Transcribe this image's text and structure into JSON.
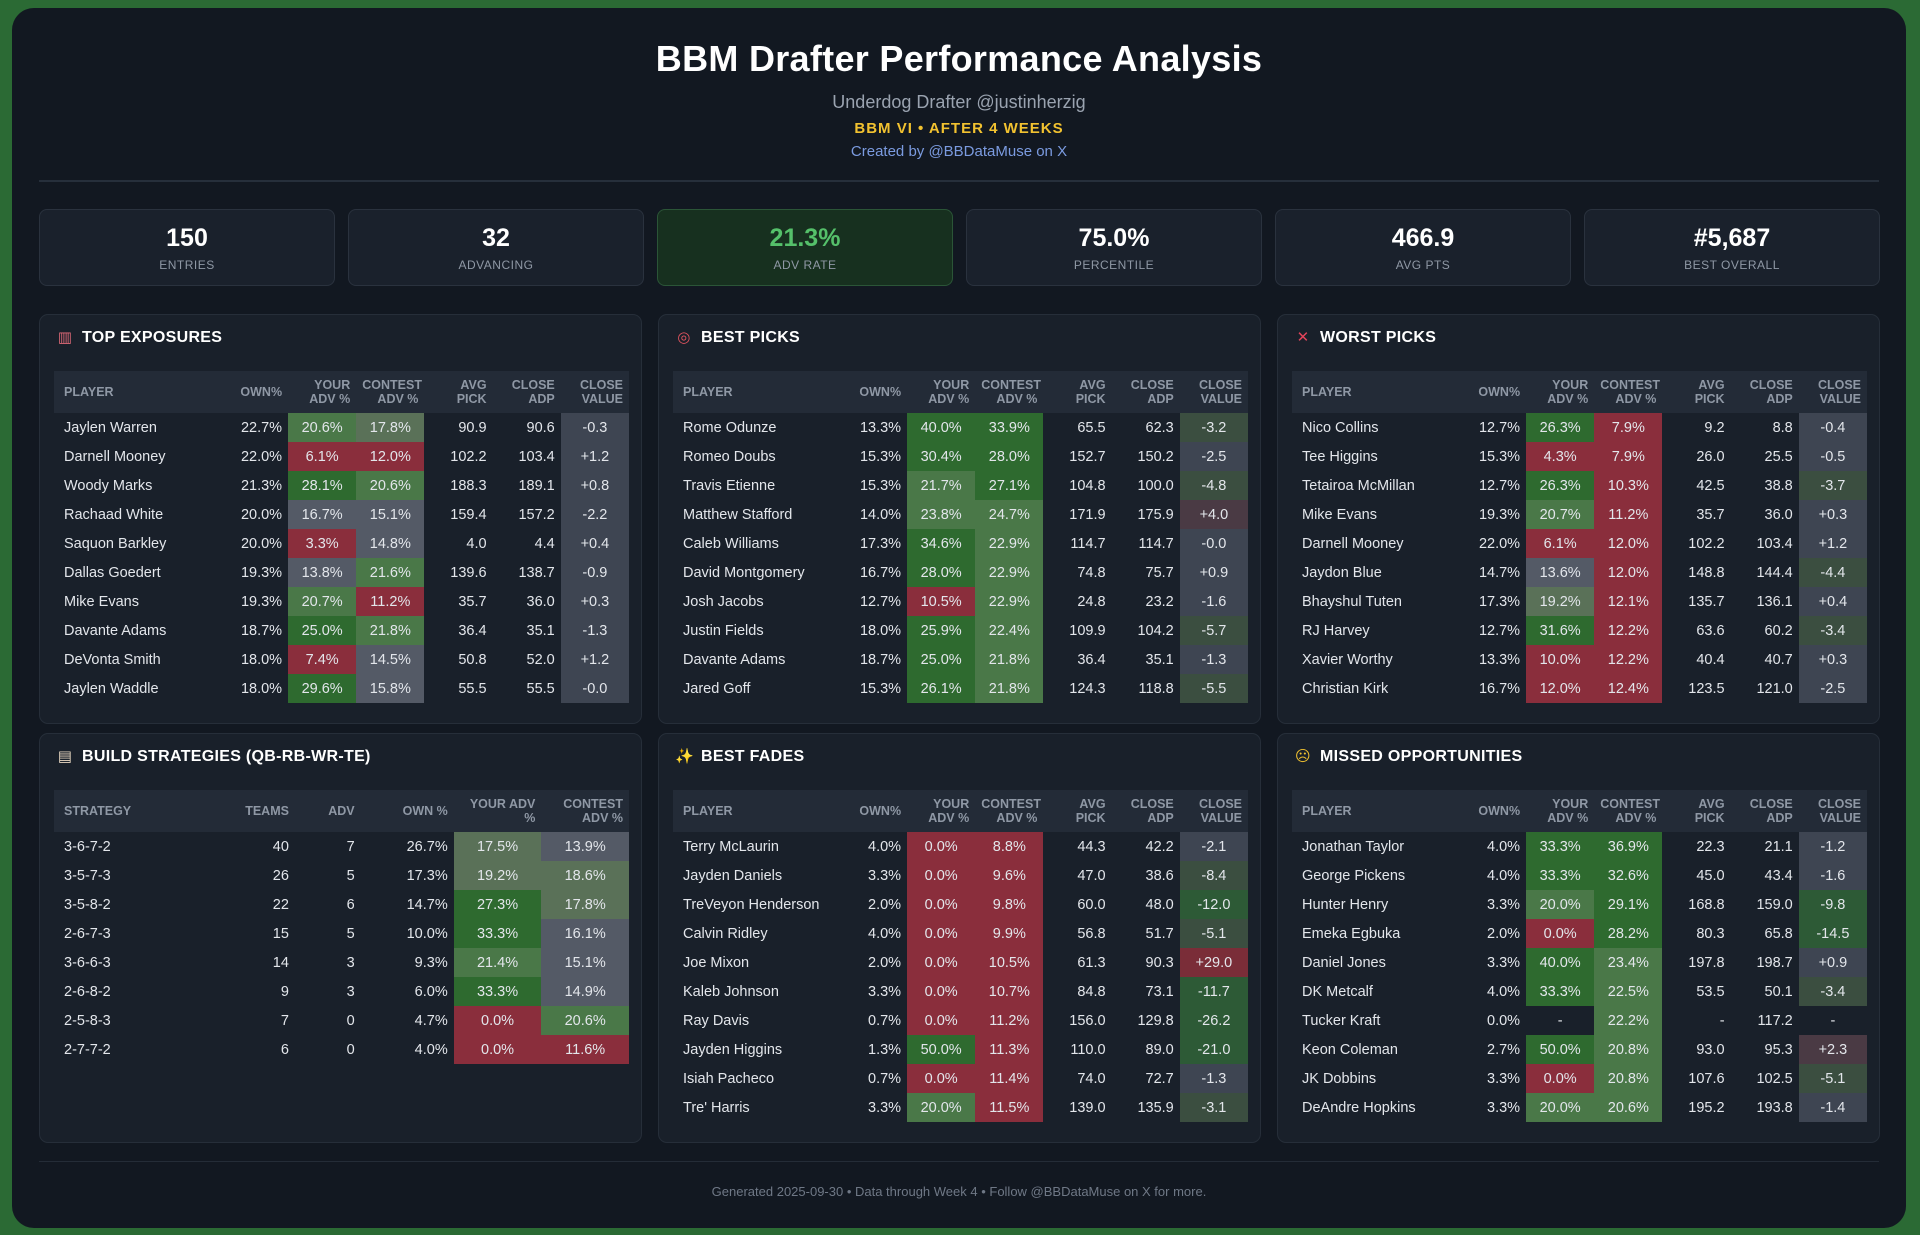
{
  "header": {
    "title": "BBM Drafter Performance Analysis",
    "subtitle": "Underdog Drafter @justinherzig",
    "season": "BBM VI • AFTER 4 WEEKS",
    "credit": "Created by @BBDataMuse on X"
  },
  "stats": [
    {
      "value": "150",
      "label": "ENTRIES"
    },
    {
      "value": "32",
      "label": "ADVANCING"
    },
    {
      "value": "21.3%",
      "label": "ADV RATE"
    },
    {
      "value": "75.0%",
      "label": "PERCENTILE"
    },
    {
      "value": "466.9",
      "label": "AVG PTS"
    },
    {
      "value": "#5,687",
      "label": "BEST OVERALL"
    }
  ],
  "colors": {
    "adv_high": "#2e6a2f",
    "adv_mid": "#4a7848",
    "adv_mid_low": "#5a7158",
    "adv_neutral": "#545a66",
    "adv_low": "#8a2e3c",
    "value_neg_strong": "#2d5a36",
    "value_neg": "#3b4e40",
    "value_flat": "#3e4552",
    "value_pos": "#4a3a44",
    "value_pos_strong": "#7a2d38"
  },
  "player_headers": [
    "PLAYER",
    "OWN%",
    "YOUR ADV %",
    "CONTEST ADV %",
    "AVG PICK",
    "CLOSE ADP",
    "CLOSE VALUE"
  ],
  "panels": {
    "top_exposures": {
      "title": "TOP EXPOSURES",
      "icon": "bar-chart-icon",
      "rows": [
        [
          "Jaylen Warren",
          "22.7%",
          "20.6%",
          "17.8%",
          "90.9",
          "90.6",
          "-0.3"
        ],
        [
          "Darnell Mooney",
          "22.0%",
          "6.1%",
          "12.0%",
          "102.2",
          "103.4",
          "+1.2"
        ],
        [
          "Woody Marks",
          "21.3%",
          "28.1%",
          "20.6%",
          "188.3",
          "189.1",
          "+0.8"
        ],
        [
          "Rachaad White",
          "20.0%",
          "16.7%",
          "15.1%",
          "159.4",
          "157.2",
          "-2.2"
        ],
        [
          "Saquon Barkley",
          "20.0%",
          "3.3%",
          "14.8%",
          "4.0",
          "4.4",
          "+0.4"
        ],
        [
          "Dallas Goedert",
          "19.3%",
          "13.8%",
          "21.6%",
          "139.6",
          "138.7",
          "-0.9"
        ],
        [
          "Mike Evans",
          "19.3%",
          "20.7%",
          "11.2%",
          "35.7",
          "36.0",
          "+0.3"
        ],
        [
          "Davante Adams",
          "18.7%",
          "25.0%",
          "21.8%",
          "36.4",
          "35.1",
          "-1.3"
        ],
        [
          "DeVonta Smith",
          "18.0%",
          "7.4%",
          "14.5%",
          "50.8",
          "52.0",
          "+1.2"
        ],
        [
          "Jaylen Waddle",
          "18.0%",
          "29.6%",
          "15.8%",
          "55.5",
          "55.5",
          "-0.0"
        ]
      ]
    },
    "best_picks": {
      "title": "BEST PICKS",
      "icon": "target-icon",
      "rows": [
        [
          "Rome Odunze",
          "13.3%",
          "40.0%",
          "33.9%",
          "65.5",
          "62.3",
          "-3.2"
        ],
        [
          "Romeo Doubs",
          "15.3%",
          "30.4%",
          "28.0%",
          "152.7",
          "150.2",
          "-2.5"
        ],
        [
          "Travis Etienne",
          "15.3%",
          "21.7%",
          "27.1%",
          "104.8",
          "100.0",
          "-4.8"
        ],
        [
          "Matthew Stafford",
          "14.0%",
          "23.8%",
          "24.7%",
          "171.9",
          "175.9",
          "+4.0"
        ],
        [
          "Caleb Williams",
          "17.3%",
          "34.6%",
          "22.9%",
          "114.7",
          "114.7",
          "-0.0"
        ],
        [
          "David Montgomery",
          "16.7%",
          "28.0%",
          "22.9%",
          "74.8",
          "75.7",
          "+0.9"
        ],
        [
          "Josh Jacobs",
          "12.7%",
          "10.5%",
          "22.9%",
          "24.8",
          "23.2",
          "-1.6"
        ],
        [
          "Justin Fields",
          "18.0%",
          "25.9%",
          "22.4%",
          "109.9",
          "104.2",
          "-5.7"
        ],
        [
          "Davante Adams",
          "18.7%",
          "25.0%",
          "21.8%",
          "36.4",
          "35.1",
          "-1.3"
        ],
        [
          "Jared Goff",
          "15.3%",
          "26.1%",
          "21.8%",
          "124.3",
          "118.8",
          "-5.5"
        ]
      ]
    },
    "worst_picks": {
      "title": "WORST PICKS",
      "icon": "x-mark-icon",
      "rows": [
        [
          "Nico Collins",
          "12.7%",
          "26.3%",
          "7.9%",
          "9.2",
          "8.8",
          "-0.4"
        ],
        [
          "Tee Higgins",
          "15.3%",
          "4.3%",
          "7.9%",
          "26.0",
          "25.5",
          "-0.5"
        ],
        [
          "Tetairoa McMillan",
          "12.7%",
          "26.3%",
          "10.3%",
          "42.5",
          "38.8",
          "-3.7"
        ],
        [
          "Mike Evans",
          "19.3%",
          "20.7%",
          "11.2%",
          "35.7",
          "36.0",
          "+0.3"
        ],
        [
          "Darnell Mooney",
          "22.0%",
          "6.1%",
          "12.0%",
          "102.2",
          "103.4",
          "+1.2"
        ],
        [
          "Jaydon Blue",
          "14.7%",
          "13.6%",
          "12.0%",
          "148.8",
          "144.4",
          "-4.4"
        ],
        [
          "Bhayshul Tuten",
          "17.3%",
          "19.2%",
          "12.1%",
          "135.7",
          "136.1",
          "+0.4"
        ],
        [
          "RJ Harvey",
          "12.7%",
          "31.6%",
          "12.2%",
          "63.6",
          "60.2",
          "-3.4"
        ],
        [
          "Xavier Worthy",
          "13.3%",
          "10.0%",
          "12.2%",
          "40.4",
          "40.7",
          "+0.3"
        ],
        [
          "Christian Kirk",
          "16.7%",
          "12.0%",
          "12.4%",
          "123.5",
          "121.0",
          "-2.5"
        ]
      ]
    },
    "build_strategies": {
      "title": "BUILD STRATEGIES (QB-RB-WR-TE)",
      "icon": "clipboard-icon",
      "headers": [
        "STRATEGY",
        "TEAMS",
        "ADV",
        "OWN %",
        "YOUR ADV %",
        "CONTEST ADV %"
      ],
      "rows": [
        [
          "3-6-7-2",
          "40",
          "7",
          "26.7%",
          "17.5%",
          "13.9%"
        ],
        [
          "3-5-7-3",
          "26",
          "5",
          "17.3%",
          "19.2%",
          "18.6%"
        ],
        [
          "3-5-8-2",
          "22",
          "6",
          "14.7%",
          "27.3%",
          "17.8%"
        ],
        [
          "2-6-7-3",
          "15",
          "5",
          "10.0%",
          "33.3%",
          "16.1%"
        ],
        [
          "3-6-6-3",
          "14",
          "3",
          "9.3%",
          "21.4%",
          "15.1%"
        ],
        [
          "2-6-8-2",
          "9",
          "3",
          "6.0%",
          "33.3%",
          "14.9%"
        ],
        [
          "2-5-8-3",
          "7",
          "0",
          "4.7%",
          "0.0%",
          "20.6%"
        ],
        [
          "2-7-7-2",
          "6",
          "0",
          "4.0%",
          "0.0%",
          "11.6%"
        ]
      ]
    },
    "best_fades": {
      "title": "BEST FADES",
      "icon": "sparkles-icon",
      "rows": [
        [
          "Terry McLaurin",
          "4.0%",
          "0.0%",
          "8.8%",
          "44.3",
          "42.2",
          "-2.1"
        ],
        [
          "Jayden Daniels",
          "3.3%",
          "0.0%",
          "9.6%",
          "47.0",
          "38.6",
          "-8.4"
        ],
        [
          "TreVeyon Henderson",
          "2.0%",
          "0.0%",
          "9.8%",
          "60.0",
          "48.0",
          "-12.0"
        ],
        [
          "Calvin Ridley",
          "4.0%",
          "0.0%",
          "9.9%",
          "56.8",
          "51.7",
          "-5.1"
        ],
        [
          "Joe Mixon",
          "2.0%",
          "0.0%",
          "10.5%",
          "61.3",
          "90.3",
          "+29.0"
        ],
        [
          "Kaleb Johnson",
          "3.3%",
          "0.0%",
          "10.7%",
          "84.8",
          "73.1",
          "-11.7"
        ],
        [
          "Ray Davis",
          "0.7%",
          "0.0%",
          "11.2%",
          "156.0",
          "129.8",
          "-26.2"
        ],
        [
          "Jayden Higgins",
          "1.3%",
          "50.0%",
          "11.3%",
          "110.0",
          "89.0",
          "-21.0"
        ],
        [
          "Isiah Pacheco",
          "0.7%",
          "0.0%",
          "11.4%",
          "74.0",
          "72.7",
          "-1.3"
        ],
        [
          "Tre' Harris",
          "3.3%",
          "20.0%",
          "11.5%",
          "139.0",
          "135.9",
          "-3.1"
        ]
      ]
    },
    "missed_opportunities": {
      "title": "MISSED OPPORTUNITIES",
      "icon": "wince-face-icon",
      "rows": [
        [
          "Jonathan Taylor",
          "4.0%",
          "33.3%",
          "36.9%",
          "22.3",
          "21.1",
          "-1.2"
        ],
        [
          "George Pickens",
          "4.0%",
          "33.3%",
          "32.6%",
          "45.0",
          "43.4",
          "-1.6"
        ],
        [
          "Hunter Henry",
          "3.3%",
          "20.0%",
          "29.1%",
          "168.8",
          "159.0",
          "-9.8"
        ],
        [
          "Emeka Egbuka",
          "2.0%",
          "0.0%",
          "28.2%",
          "80.3",
          "65.8",
          "-14.5"
        ],
        [
          "Daniel Jones",
          "3.3%",
          "40.0%",
          "23.4%",
          "197.8",
          "198.7",
          "+0.9"
        ],
        [
          "DK Metcalf",
          "4.0%",
          "33.3%",
          "22.5%",
          "53.5",
          "50.1",
          "-3.4"
        ],
        [
          "Tucker Kraft",
          "0.0%",
          "-",
          "22.2%",
          "-",
          "117.2",
          "-"
        ],
        [
          "Keon Coleman",
          "2.7%",
          "50.0%",
          "20.8%",
          "93.0",
          "95.3",
          "+2.3"
        ],
        [
          "JK Dobbins",
          "3.3%",
          "0.0%",
          "20.8%",
          "107.6",
          "102.5",
          "-5.1"
        ],
        [
          "DeAndre Hopkins",
          "3.3%",
          "20.0%",
          "20.6%",
          "195.2",
          "193.8",
          "-1.4"
        ]
      ]
    }
  },
  "footer": "Generated 2025-09-30 • Data through Week 4 • Follow @BBDataMuse on X for more."
}
